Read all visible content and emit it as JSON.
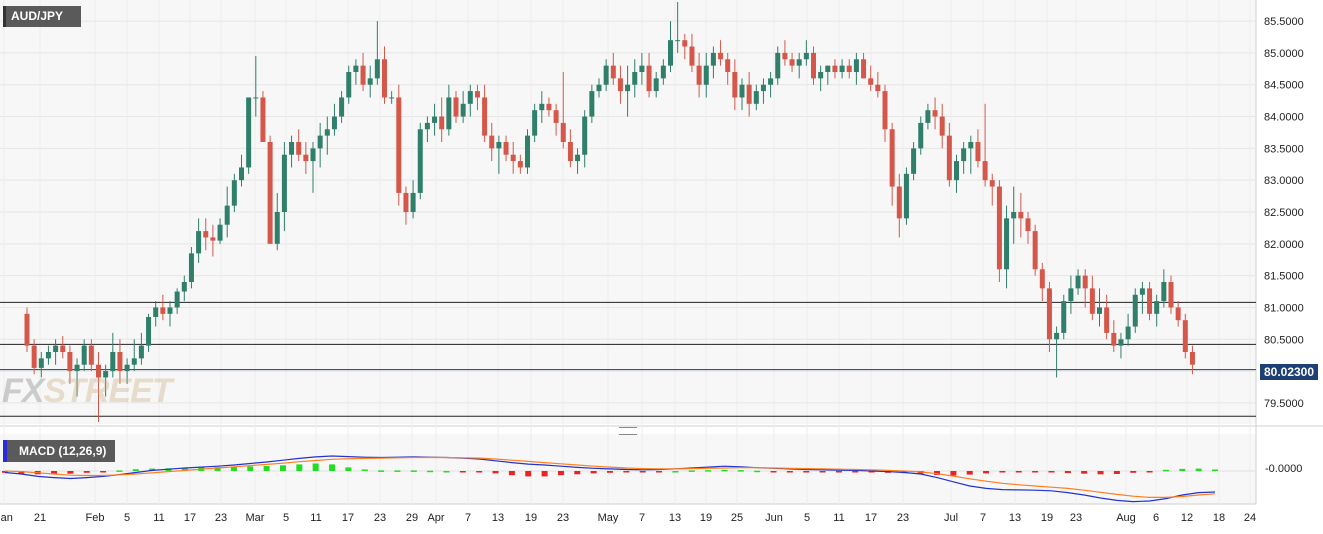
{
  "symbol": "AUD/JPY",
  "watermark": {
    "part1": "FX",
    "part2": "STREET"
  },
  "last_price": "80.02300",
  "colors": {
    "up": "#2f7f6a",
    "down": "#d4574a",
    "macd_line": "#2233cc",
    "signal_line": "#ff7f1e",
    "hist_up": "#22dd22",
    "hist_down": "#ee2222",
    "last_price_bg": "#1d3f73"
  },
  "chart_data": [
    {
      "type": "candlestick",
      "title": "AUD/JPY",
      "ylim": [
        79.2,
        85.8
      ],
      "y_ticks": [
        "79.5000",
        "80.0000",
        "80.5000",
        "81.0000",
        "81.5000",
        "82.0000",
        "82.5000",
        "83.0000",
        "83.5000",
        "84.0000",
        "84.5000",
        "85.0000",
        "85.5000"
      ],
      "x_ticks": [
        "Jan",
        "21",
        "Feb",
        "5",
        "11",
        "17",
        "23",
        "Mar",
        "5",
        "11",
        "17",
        "23",
        "29",
        "Apr",
        "7",
        "13",
        "19",
        "23",
        "May",
        "7",
        "13",
        "19",
        "25",
        "Jun",
        "5",
        "11",
        "17",
        "23",
        "Jul",
        "7",
        "13",
        "19",
        "23",
        "Aug",
        "6",
        "12",
        "18",
        "24"
      ],
      "horizontal_lines": [
        81.08,
        80.42,
        79.29
      ],
      "last_price": 80.023,
      "grid": true,
      "candles": [
        [
          80.9,
          81.0,
          80.3,
          80.4
        ],
        [
          80.4,
          80.5,
          79.95,
          80.05
        ],
        [
          80.05,
          80.3,
          79.9,
          80.2
        ],
        [
          80.2,
          80.4,
          80.1,
          80.3
        ],
        [
          80.3,
          80.5,
          80.1,
          80.4
        ],
        [
          80.4,
          80.55,
          80.2,
          80.3
        ],
        [
          80.3,
          80.4,
          79.8,
          80.0
        ],
        [
          80.0,
          80.2,
          79.6,
          80.1
        ],
        [
          80.1,
          80.5,
          80.0,
          80.4
        ],
        [
          80.4,
          80.5,
          80.0,
          80.1
        ],
        [
          80.1,
          80.3,
          79.2,
          79.9
        ],
        [
          79.9,
          80.1,
          79.6,
          80.0
        ],
        [
          80.0,
          80.6,
          79.9,
          80.3
        ],
        [
          80.3,
          80.5,
          79.8,
          80.0
        ],
        [
          80.0,
          80.2,
          79.8,
          80.1
        ],
        [
          80.1,
          80.5,
          80.0,
          80.2
        ],
        [
          80.2,
          80.6,
          80.1,
          80.4
        ],
        [
          80.4,
          80.9,
          80.3,
          80.85
        ],
        [
          80.85,
          81.1,
          80.7,
          81.0
        ],
        [
          81.0,
          81.2,
          80.8,
          80.9
        ],
        [
          80.9,
          81.1,
          80.7,
          81.0
        ],
        [
          81.0,
          81.3,
          80.9,
          81.25
        ],
        [
          81.25,
          81.5,
          81.1,
          81.4
        ],
        [
          81.4,
          81.95,
          81.3,
          81.85
        ],
        [
          81.85,
          82.4,
          81.7,
          82.2
        ],
        [
          82.2,
          82.4,
          81.9,
          82.1
        ],
        [
          82.1,
          82.3,
          81.8,
          82.05
        ],
        [
          82.05,
          82.4,
          82.0,
          82.3
        ],
        [
          82.3,
          82.9,
          82.1,
          82.6
        ],
        [
          82.6,
          83.1,
          82.5,
          83.0
        ],
        [
          83.0,
          83.4,
          82.9,
          83.2
        ],
        [
          83.2,
          84.3,
          83.1,
          84.3
        ],
        [
          84.3,
          84.95,
          84.0,
          84.3
        ],
        [
          84.3,
          84.4,
          83.6,
          83.6
        ],
        [
          83.6,
          83.7,
          82.0,
          82.0
        ],
        [
          82.0,
          82.8,
          81.9,
          82.5
        ],
        [
          82.5,
          83.6,
          82.2,
          83.4
        ],
        [
          83.4,
          83.7,
          83.2,
          83.6
        ],
        [
          83.6,
          83.8,
          83.3,
          83.4
        ],
        [
          83.4,
          83.6,
          83.1,
          83.3
        ],
        [
          83.3,
          83.6,
          82.8,
          83.5
        ],
        [
          83.5,
          83.9,
          83.2,
          83.7
        ],
        [
          83.7,
          84.0,
          83.4,
          83.8
        ],
        [
          83.8,
          84.2,
          83.7,
          84.0
        ],
        [
          84.0,
          84.4,
          83.9,
          84.3
        ],
        [
          84.3,
          84.8,
          84.2,
          84.7
        ],
        [
          84.7,
          84.9,
          84.5,
          84.8
        ],
        [
          84.8,
          85.0,
          84.4,
          84.5
        ],
        [
          84.5,
          84.8,
          84.3,
          84.6
        ],
        [
          84.6,
          85.5,
          84.5,
          84.9
        ],
        [
          84.9,
          85.1,
          84.2,
          84.3
        ],
        [
          84.3,
          84.4,
          84.2,
          84.3
        ],
        [
          84.3,
          84.5,
          82.6,
          82.8
        ],
        [
          82.8,
          82.9,
          82.3,
          82.5
        ],
        [
          82.5,
          83.0,
          82.4,
          82.8
        ],
        [
          82.8,
          83.9,
          82.7,
          83.8
        ],
        [
          83.8,
          84.0,
          83.6,
          83.9
        ],
        [
          83.9,
          84.2,
          83.7,
          84.0
        ],
        [
          84.0,
          84.3,
          83.6,
          83.8
        ],
        [
          83.8,
          84.5,
          83.7,
          84.3
        ],
        [
          84.3,
          84.4,
          83.9,
          84.0
        ],
        [
          84.0,
          84.4,
          83.9,
          84.2
        ],
        [
          84.2,
          84.5,
          84.0,
          84.4
        ],
        [
          84.4,
          84.5,
          84.1,
          84.3
        ],
        [
          84.3,
          84.5,
          83.6,
          83.7
        ],
        [
          83.7,
          83.9,
          83.3,
          83.5
        ],
        [
          83.5,
          83.7,
          83.1,
          83.6
        ],
        [
          83.6,
          83.7,
          83.3,
          83.4
        ],
        [
          83.4,
          83.6,
          83.1,
          83.3
        ],
        [
          83.3,
          83.4,
          83.1,
          83.2
        ],
        [
          83.2,
          83.8,
          83.1,
          83.7
        ],
        [
          83.7,
          84.2,
          83.6,
          84.1
        ],
        [
          84.1,
          84.4,
          83.9,
          84.2
        ],
        [
          84.2,
          84.3,
          84.0,
          84.1
        ],
        [
          84.1,
          84.2,
          83.7,
          83.9
        ],
        [
          83.9,
          84.7,
          83.5,
          83.6
        ],
        [
          83.6,
          83.8,
          83.2,
          83.3
        ],
        [
          83.3,
          83.5,
          83.1,
          83.4
        ],
        [
          83.4,
          84.1,
          83.2,
          84.0
        ],
        [
          84.0,
          84.5,
          83.9,
          84.4
        ],
        [
          84.4,
          84.6,
          84.3,
          84.5
        ],
        [
          84.5,
          84.9,
          84.4,
          84.8
        ],
        [
          84.8,
          85.0,
          84.5,
          84.6
        ],
        [
          84.6,
          84.8,
          84.2,
          84.4
        ],
        [
          84.4,
          84.8,
          84.0,
          84.5
        ],
        [
          84.5,
          84.9,
          84.3,
          84.7
        ],
        [
          84.7,
          85.0,
          84.5,
          84.8
        ],
        [
          84.8,
          85.0,
          84.3,
          84.4
        ],
        [
          84.4,
          84.7,
          84.3,
          84.6
        ],
        [
          84.6,
          84.9,
          84.5,
          84.8
        ],
        [
          84.8,
          85.5,
          84.7,
          85.2
        ],
        [
          85.2,
          85.8,
          85.0,
          85.2
        ],
        [
          85.2,
          85.3,
          84.9,
          85.1
        ],
        [
          85.1,
          85.3,
          84.7,
          84.8
        ],
        [
          84.8,
          85.0,
          84.3,
          84.5
        ],
        [
          84.5,
          85.0,
          84.3,
          84.8
        ],
        [
          84.8,
          85.1,
          84.6,
          85.0
        ],
        [
          85.0,
          85.2,
          84.8,
          84.9
        ],
        [
          84.9,
          85.0,
          84.5,
          84.7
        ],
        [
          84.7,
          84.9,
          84.1,
          84.3
        ],
        [
          84.3,
          84.6,
          84.1,
          84.5
        ],
        [
          84.5,
          84.7,
          84.0,
          84.2
        ],
        [
          84.2,
          84.5,
          84.1,
          84.4
        ],
        [
          84.4,
          84.6,
          84.2,
          84.5
        ],
        [
          84.5,
          84.7,
          84.3,
          84.6
        ],
        [
          84.6,
          85.1,
          84.5,
          85.0
        ],
        [
          85.0,
          85.2,
          84.8,
          84.9
        ],
        [
          84.9,
          85.0,
          84.7,
          84.8
        ],
        [
          84.8,
          85.0,
          84.6,
          84.9
        ],
        [
          84.9,
          85.2,
          84.8,
          85.0
        ],
        [
          85.0,
          85.1,
          84.5,
          84.6
        ],
        [
          84.6,
          84.8,
          84.4,
          84.7
        ],
        [
          84.7,
          84.8,
          84.5,
          84.8
        ],
        [
          84.8,
          84.9,
          84.6,
          84.7
        ],
        [
          84.7,
          84.9,
          84.6,
          84.8
        ],
        [
          84.8,
          84.9,
          84.6,
          84.7
        ],
        [
          84.7,
          85.0,
          84.5,
          84.9
        ],
        [
          84.9,
          85.0,
          84.6,
          84.6
        ],
        [
          84.6,
          84.8,
          84.4,
          84.5
        ],
        [
          84.5,
          84.7,
          84.3,
          84.4
        ],
        [
          84.4,
          84.5,
          83.6,
          83.8
        ],
        [
          83.8,
          83.9,
          82.6,
          82.9
        ],
        [
          82.9,
          83.1,
          82.1,
          82.4
        ],
        [
          82.4,
          83.2,
          82.3,
          83.1
        ],
        [
          83.1,
          83.6,
          83.0,
          83.5
        ],
        [
          83.5,
          84.0,
          83.4,
          83.9
        ],
        [
          83.9,
          84.2,
          83.8,
          84.1
        ],
        [
          84.1,
          84.3,
          83.8,
          84.0
        ],
        [
          84.0,
          84.2,
          83.5,
          83.7
        ],
        [
          83.7,
          83.9,
          82.9,
          83.0
        ],
        [
          83.0,
          83.4,
          82.8,
          83.3
        ],
        [
          83.3,
          83.6,
          83.1,
          83.5
        ],
        [
          83.5,
          83.7,
          83.1,
          83.6
        ],
        [
          83.6,
          83.8,
          83.2,
          83.3
        ],
        [
          83.3,
          84.2,
          82.9,
          83.0
        ],
        [
          83.0,
          83.1,
          82.6,
          82.9
        ],
        [
          82.9,
          83.0,
          81.4,
          81.6
        ],
        [
          81.6,
          82.6,
          81.3,
          82.4
        ],
        [
          82.4,
          82.9,
          82.0,
          82.5
        ],
        [
          82.5,
          82.8,
          82.1,
          82.4
        ],
        [
          82.4,
          82.5,
          82.0,
          82.2
        ],
        [
          82.2,
          82.3,
          81.5,
          81.6
        ],
        [
          81.6,
          81.7,
          81.1,
          81.3
        ],
        [
          81.3,
          81.4,
          80.3,
          80.5
        ],
        [
          80.5,
          80.7,
          79.9,
          80.6
        ],
        [
          80.6,
          81.2,
          80.5,
          81.1
        ],
        [
          81.1,
          81.5,
          80.9,
          81.3
        ],
        [
          81.3,
          81.6,
          81.2,
          81.5
        ],
        [
          81.5,
          81.6,
          81.0,
          81.3
        ],
        [
          81.3,
          81.5,
          80.8,
          80.9
        ],
        [
          80.9,
          81.3,
          80.7,
          81.0
        ],
        [
          81.0,
          81.2,
          80.5,
          80.6
        ],
        [
          80.6,
          80.8,
          80.3,
          80.4
        ],
        [
          80.4,
          80.6,
          80.2,
          80.5
        ],
        [
          80.5,
          80.9,
          80.4,
          80.7
        ],
        [
          80.7,
          81.3,
          80.6,
          81.2
        ],
        [
          81.2,
          81.4,
          80.9,
          81.3
        ],
        [
          81.3,
          81.4,
          80.8,
          80.9
        ],
        [
          80.9,
          81.2,
          80.7,
          81.1
        ],
        [
          81.1,
          81.6,
          81.0,
          81.4
        ],
        [
          81.4,
          81.5,
          80.9,
          81.0
        ],
        [
          81.0,
          81.1,
          80.7,
          80.8
        ],
        [
          80.8,
          80.9,
          80.2,
          80.3
        ],
        [
          80.3,
          80.4,
          79.95,
          80.1
        ]
      ]
    },
    {
      "type": "line",
      "title": "MACD (12,26,9)",
      "y_ticks": [
        "-0.0000"
      ],
      "series": [
        {
          "name": "MACD",
          "values": [
            -0.05,
            -0.1,
            -0.18,
            -0.22,
            -0.25,
            -0.22,
            -0.18,
            -0.12,
            -0.05,
            0.02,
            0.06,
            0.1,
            0.13,
            0.16,
            0.2,
            0.25,
            0.3,
            0.36,
            0.42,
            0.47,
            0.5,
            0.48,
            0.46,
            0.45,
            0.46,
            0.47,
            0.46,
            0.45,
            0.43,
            0.4,
            0.34,
            0.28,
            0.23,
            0.2,
            0.16,
            0.12,
            0.09,
            0.07,
            0.05,
            0.04,
            0.05,
            0.07,
            0.1,
            0.13,
            0.16,
            0.14,
            0.11,
            0.09,
            0.07,
            0.05,
            0.04,
            0.03,
            0.02,
            0.0,
            -0.02,
            -0.05,
            -0.1,
            -0.22,
            -0.36,
            -0.5,
            -0.58,
            -0.62,
            -0.63,
            -0.64,
            -0.66,
            -0.72,
            -0.8,
            -0.9,
            -0.98,
            -1.02,
            -1.0,
            -0.92,
            -0.8,
            -0.72,
            -0.7
          ]
        },
        {
          "name": "Signal",
          "values": [
            0.0,
            -0.02,
            -0.06,
            -0.1,
            -0.14,
            -0.15,
            -0.15,
            -0.13,
            -0.1,
            -0.06,
            -0.02,
            0.02,
            0.06,
            0.1,
            0.14,
            0.18,
            0.22,
            0.26,
            0.31,
            0.35,
            0.39,
            0.41,
            0.42,
            0.43,
            0.44,
            0.45,
            0.45,
            0.45,
            0.44,
            0.43,
            0.4,
            0.36,
            0.32,
            0.28,
            0.24,
            0.2,
            0.16,
            0.13,
            0.1,
            0.08,
            0.07,
            0.07,
            0.08,
            0.09,
            0.1,
            0.11,
            0.11,
            0.1,
            0.09,
            0.08,
            0.07,
            0.06,
            0.05,
            0.04,
            0.02,
            0.0,
            -0.03,
            -0.09,
            -0.17,
            -0.26,
            -0.34,
            -0.41,
            -0.46,
            -0.5,
            -0.54,
            -0.58,
            -0.64,
            -0.71,
            -0.78,
            -0.84,
            -0.88,
            -0.88,
            -0.85,
            -0.8,
            -0.76
          ]
        }
      ],
      "histogram": [
        -0.06,
        -0.09,
        -0.11,
        -0.11,
        -0.09,
        -0.06,
        -0.03,
        0.02,
        0.06,
        0.08,
        0.09,
        0.11,
        0.12,
        0.13,
        0.14,
        0.15,
        0.17,
        0.19,
        0.22,
        0.25,
        0.22,
        0.12,
        0.05,
        0.02,
        0.02,
        0.02,
        0.01,
        0.0,
        -0.01,
        -0.02,
        -0.08,
        -0.14,
        -0.18,
        -0.18,
        -0.14,
        -0.11,
        -0.08,
        -0.06,
        -0.05,
        -0.04,
        -0.02,
        0.0,
        0.02,
        0.03,
        0.04,
        0.03,
        0.01,
        -0.01,
        -0.03,
        -0.03,
        -0.03,
        -0.03,
        -0.04,
        -0.05,
        -0.06,
        -0.07,
        -0.09,
        -0.13,
        -0.15,
        -0.12,
        -0.08,
        -0.05,
        -0.04,
        -0.03,
        -0.04,
        -0.07,
        -0.09,
        -0.11,
        -0.1,
        -0.06,
        -0.01,
        0.04,
        0.07,
        0.08,
        0.05
      ]
    }
  ]
}
